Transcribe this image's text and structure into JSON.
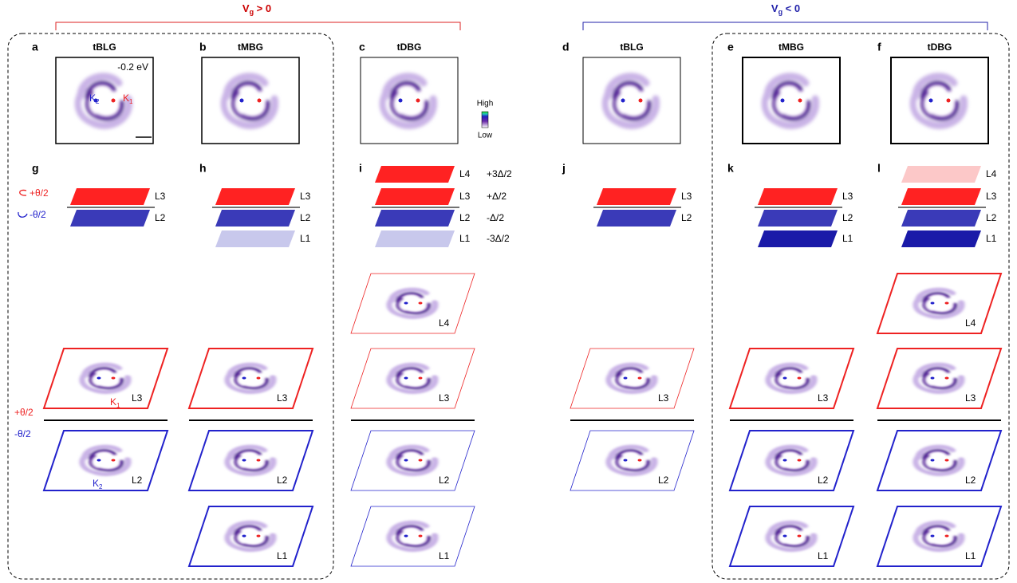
{
  "header": {
    "left": {
      "symbol": "V",
      "subscript": "g",
      "relation": " > 0"
    },
    "right": {
      "symbol": "V",
      "subscript": "g",
      "relation": " < 0"
    }
  },
  "top_panels": [
    {
      "letter": "a",
      "title": "tBLG"
    },
    {
      "letter": "b",
      "title": "tMBG"
    },
    {
      "letter": "c",
      "title": "tDBG"
    },
    {
      "letter": "d",
      "title": "tBLG"
    },
    {
      "letter": "e",
      "title": "tMBG"
    },
    {
      "letter": "f",
      "title": "tDBG"
    }
  ],
  "panel_a_notes": {
    "energy": "-0.2 eV",
    "k2": {
      "main": "K",
      "sub": "2"
    },
    "k1": {
      "main": "K",
      "sub": "1"
    }
  },
  "colorbar": {
    "high": "High",
    "low": "Low"
  },
  "stack_panels": [
    {
      "letter": "g",
      "layers": [
        "L3",
        "L2"
      ]
    },
    {
      "letter": "h",
      "layers": [
        "L3",
        "L2",
        "L1"
      ]
    },
    {
      "letter": "i",
      "layers": [
        "L4",
        "L3",
        "L2",
        "L1"
      ],
      "energies": [
        "+3Δ/2",
        "+Δ/2",
        "-Δ/2",
        "-3Δ/2"
      ]
    },
    {
      "letter": "j",
      "layers": [
        "L3",
        "L2"
      ]
    },
    {
      "letter": "k",
      "layers": [
        "L3",
        "L2",
        "L1"
      ]
    },
    {
      "letter": "l",
      "layers": [
        "L4",
        "L3",
        "L2",
        "L1"
      ]
    }
  ],
  "twist": {
    "plus": "+θ/2",
    "minus": "-θ/2"
  },
  "real_space": [
    {
      "layers": [
        "L3",
        "L2"
      ]
    },
    {
      "layers": [
        "L3",
        "L2",
        "L1"
      ]
    },
    {
      "layers": [
        "L4",
        "L3",
        "L2",
        "L1"
      ]
    },
    {
      "layers": [
        "L3",
        "L2"
      ]
    },
    {
      "layers": [
        "L3",
        "L2",
        "L1"
      ]
    },
    {
      "layers": [
        "L4",
        "L3",
        "L2",
        "L1"
      ]
    }
  ],
  "real_space_g_labels": {
    "k1": {
      "main": "K",
      "sub": "1"
    },
    "k2": {
      "main": "K",
      "sub": "2"
    }
  }
}
